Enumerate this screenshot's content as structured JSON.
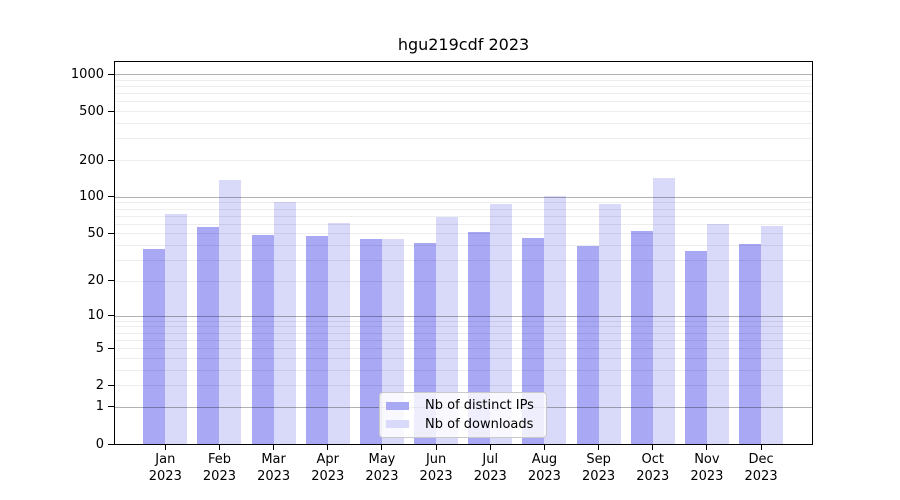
{
  "chart_data": {
    "type": "bar",
    "title": "hgu219cdf 2023",
    "y_scale": "log1p",
    "grid": "on",
    "legend_position": "bottom-center",
    "categories": [
      "Jan",
      "Feb",
      "Mar",
      "Apr",
      "May",
      "Jun",
      "Jul",
      "Aug",
      "Sep",
      "Oct",
      "Nov",
      "Dec"
    ],
    "year_label": "2023",
    "series": [
      {
        "name": "Nb of distinct IPs",
        "color": "#a8a8f4",
        "values": [
          37,
          57,
          49,
          48,
          45,
          42,
          51,
          46,
          39,
          52,
          36,
          41
        ]
      },
      {
        "name": "Nb of downloads",
        "color": "#d9d9f9",
        "values": [
          72,
          138,
          91,
          61,
          45,
          68,
          88,
          102,
          88,
          143,
          60,
          58
        ]
      }
    ],
    "y_ticks": [
      0,
      1,
      2,
      5,
      10,
      20,
      50,
      100,
      200,
      500,
      1000
    ],
    "ylim": [
      0,
      1250
    ],
    "xlabel": "",
    "ylabel": ""
  },
  "colors": {
    "figure_background": "#ffffff",
    "bar_distinct_ips": "#a8a8f4",
    "bar_downloads": "#d9d9f9",
    "grid_major": "rgba(0,0,0,0.30)",
    "grid_minor": "rgba(0,0,0,0.07)",
    "axis": "#000000",
    "legend_border": "#c9c9c9"
  }
}
